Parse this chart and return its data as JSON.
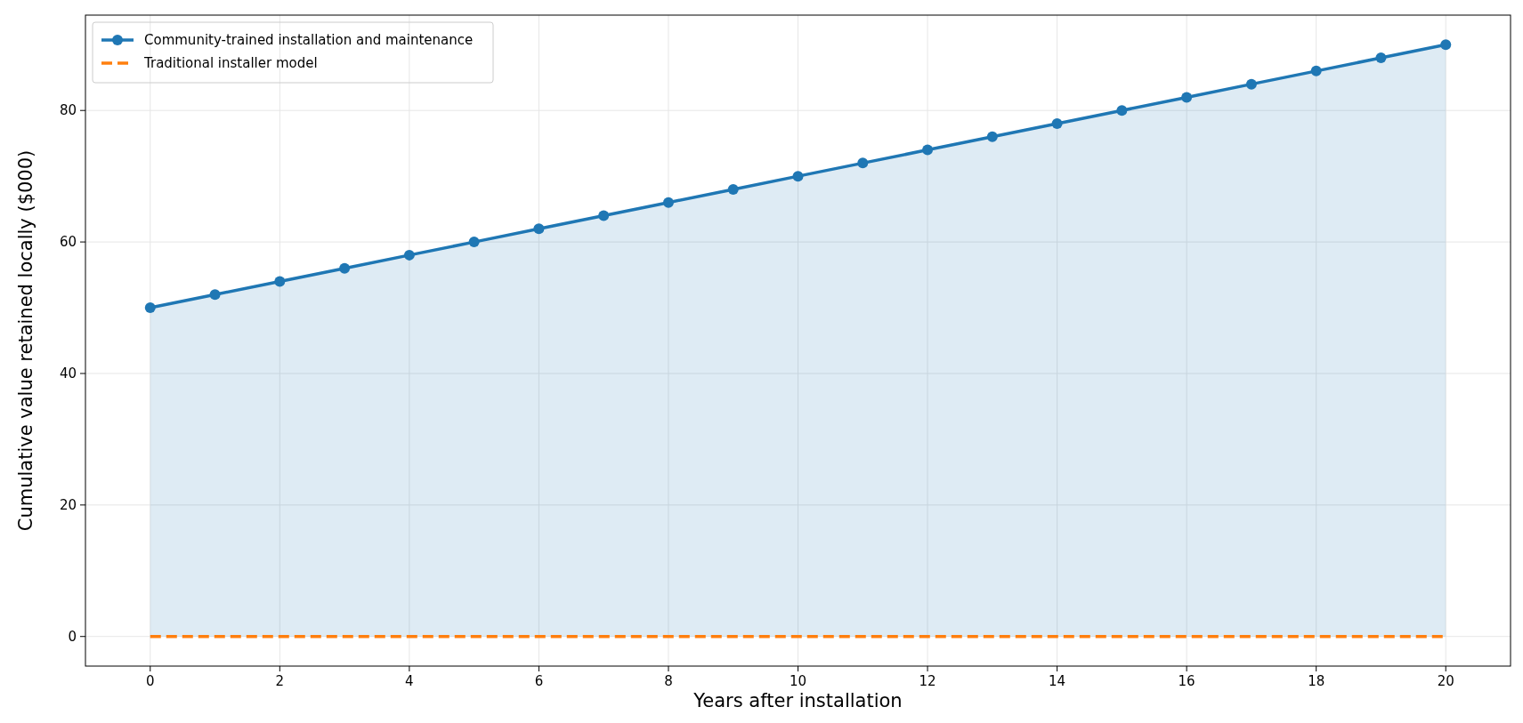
{
  "chart_data": {
    "type": "line",
    "xlabel": "Years after installation",
    "ylabel": "Cumulative value retained locally ($000)",
    "x": [
      0,
      1,
      2,
      3,
      4,
      5,
      6,
      7,
      8,
      9,
      10,
      11,
      12,
      13,
      14,
      15,
      16,
      17,
      18,
      19,
      20
    ],
    "series": [
      {
        "name": "Community-trained installation and maintenance",
        "type": "area",
        "color": "#1f77b4",
        "marker": "circle",
        "line_style": "solid",
        "values": [
          50,
          52,
          54,
          56,
          58,
          60,
          62,
          64,
          66,
          68,
          70,
          72,
          74,
          76,
          78,
          80,
          82,
          84,
          86,
          88,
          90
        ]
      },
      {
        "name": "Traditional installer model",
        "color": "#ff7f0e",
        "marker": "none",
        "line_style": "dashed",
        "values": [
          0,
          0,
          0,
          0,
          0,
          0,
          0,
          0,
          0,
          0,
          0,
          0,
          0,
          0,
          0,
          0,
          0,
          0,
          0,
          0,
          0
        ]
      }
    ],
    "xlim": [
      -1,
      21
    ],
    "xticks": [
      0,
      2,
      4,
      6,
      8,
      10,
      12,
      14,
      16,
      18,
      20
    ],
    "ylim": [
      -4.5,
      94.5
    ],
    "yticks": [
      0,
      20,
      40,
      60,
      80
    ],
    "grid": true,
    "legend": "top left"
  }
}
